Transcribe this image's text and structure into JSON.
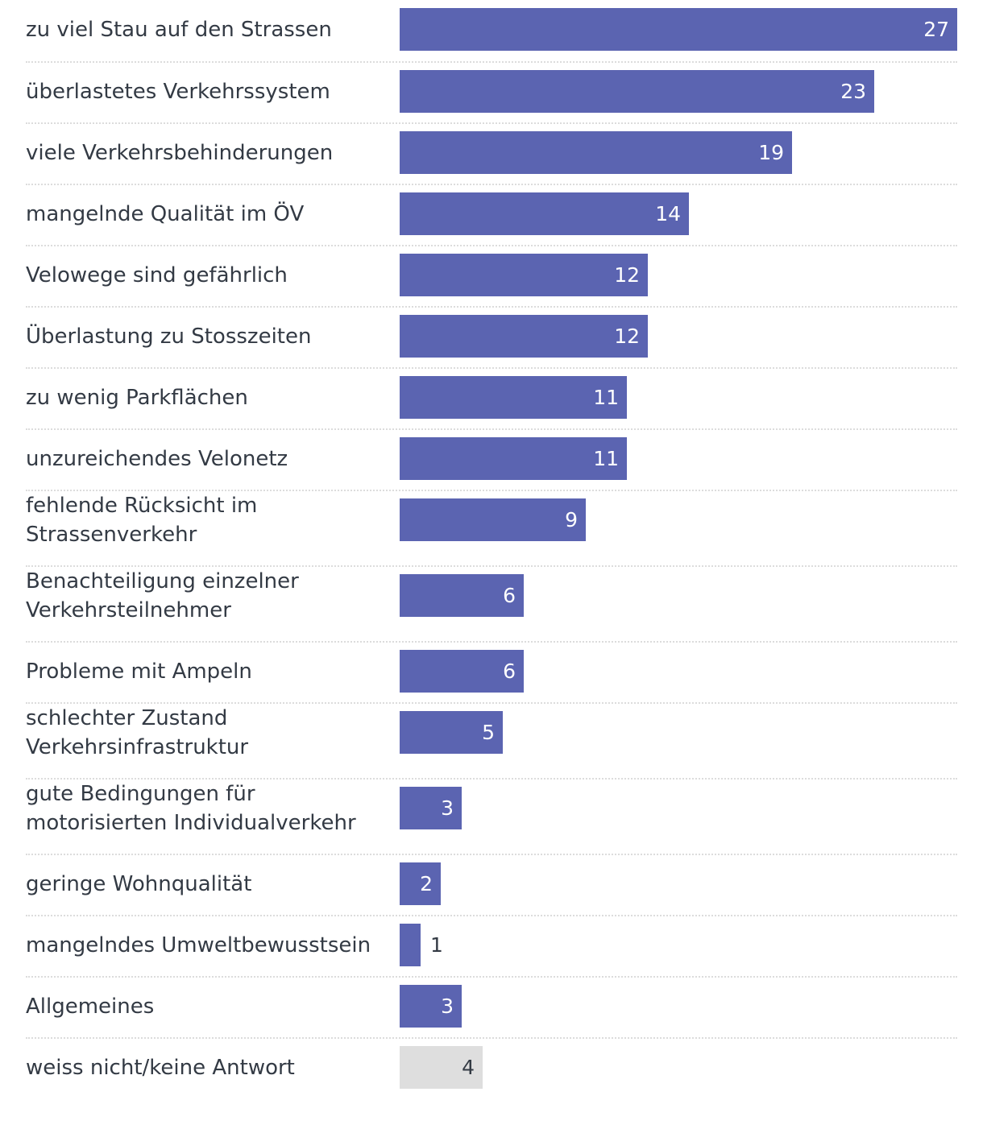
{
  "colors": {
    "bar": "#5b64b1",
    "bar_muted": "#dedede",
    "text": "#333a44",
    "value_inside": "#ffffff",
    "value_on_muted": "#333a44"
  },
  "chart_data": {
    "type": "bar",
    "orientation": "horizontal",
    "title": "",
    "xlabel": "",
    "ylabel": "",
    "xlim": [
      0,
      27
    ],
    "grid": false,
    "categories": [
      "zu viel Stau auf den Strassen",
      "überlastetes Verkehrssystem",
      "viele Verkehrsbehinderungen",
      "mangelnde Qualität im ÖV",
      "Velowege sind gefährlich",
      "Überlastung zu Stosszeiten",
      "zu wenig Parkflächen",
      "unzureichendes Velonetz",
      "fehlende Rücksicht im Strassenverkehr",
      "Benachteiligung einzelner Verkehrsteilnehmer",
      "Probleme mit Ampeln",
      "schlechter Zustand Verkehrsinfrastruktur",
      "gute Bedingungen für motorisierten Individualverkehr",
      "geringe Wohnqualität",
      "mangelndes Umweltbewusstsein",
      "Allgemeines",
      "weiss nicht/keine Antwort"
    ],
    "label_lines": [
      [
        "zu viel Stau auf den Strassen"
      ],
      [
        "überlastetes Verkehrssystem"
      ],
      [
        "viele Verkehrsbehinderungen"
      ],
      [
        "mangelnde Qualität im ÖV"
      ],
      [
        "Velowege sind gefährlich"
      ],
      [
        "Überlastung zu Stosszeiten"
      ],
      [
        "zu wenig Parkflächen"
      ],
      [
        "unzureichendes Velonetz"
      ],
      [
        "fehlende Rücksicht im",
        "Strassenverkehr"
      ],
      [
        "Benachteiligung einzelner",
        "Verkehrsteilnehmer"
      ],
      [
        "Probleme mit Ampeln"
      ],
      [
        "schlechter Zustand",
        "Verkehrsinfrastruktur"
      ],
      [
        "gute Bedingungen für",
        "motorisierten Individualverkehr"
      ],
      [
        "geringe Wohnqualität"
      ],
      [
        "mangelndes Umweltbewusstsein"
      ],
      [
        "Allgemeines"
      ],
      [
        "weiss nicht/keine Antwort"
      ]
    ],
    "values": [
      27,
      23,
      19,
      14,
      12,
      12,
      11,
      11,
      9,
      6,
      6,
      5,
      3,
      2,
      1,
      3,
      4
    ],
    "muted": [
      false,
      false,
      false,
      false,
      false,
      false,
      false,
      false,
      false,
      false,
      false,
      false,
      false,
      false,
      false,
      false,
      true
    ]
  }
}
